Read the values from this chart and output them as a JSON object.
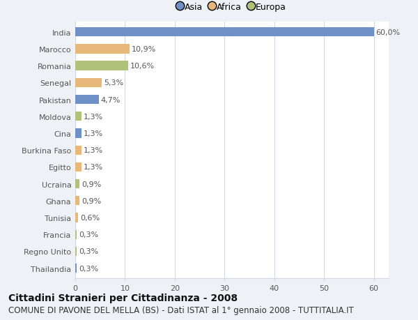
{
  "categories": [
    "India",
    "Marocco",
    "Romania",
    "Senegal",
    "Pakistan",
    "Moldova",
    "Cina",
    "Burkina Faso",
    "Egitto",
    "Ucraina",
    "Ghana",
    "Tunisia",
    "Francia",
    "Regno Unito",
    "Thailandia"
  ],
  "values": [
    60.0,
    10.9,
    10.6,
    5.3,
    4.7,
    1.3,
    1.3,
    1.3,
    1.3,
    0.9,
    0.9,
    0.6,
    0.3,
    0.3,
    0.3
  ],
  "labels": [
    "60,0%",
    "10,9%",
    "10,6%",
    "5,3%",
    "4,7%",
    "1,3%",
    "1,3%",
    "1,3%",
    "1,3%",
    "0,9%",
    "0,9%",
    "0,6%",
    "0,3%",
    "0,3%",
    "0,3%"
  ],
  "colors": [
    "#7090c8",
    "#e8b87a",
    "#afc27a",
    "#e8b87a",
    "#7090c8",
    "#afc27a",
    "#7090c8",
    "#e8b87a",
    "#e8b87a",
    "#afc27a",
    "#e8b87a",
    "#e8b87a",
    "#afc27a",
    "#afc27a",
    "#7090c8"
  ],
  "legend_labels": [
    "Asia",
    "Africa",
    "Europa"
  ],
  "legend_colors": [
    "#7090c8",
    "#e8b87a",
    "#afc27a"
  ],
  "xlim": [
    0,
    63
  ],
  "xticks": [
    0,
    10,
    20,
    30,
    40,
    50,
    60
  ],
  "title": "Cittadini Stranieri per Cittadinanza - 2008",
  "subtitle": "COMUNE DI PAVONE DEL MELLA (BS) - Dati ISTAT al 1° gennaio 2008 - TUTTITALIA.IT",
  "background_color": "#eef2f7",
  "plot_background": "#ffffff",
  "grid_color": "#d0d8e4",
  "bar_height": 0.55,
  "title_fontsize": 10,
  "subtitle_fontsize": 8.5,
  "label_fontsize": 8,
  "tick_fontsize": 8
}
